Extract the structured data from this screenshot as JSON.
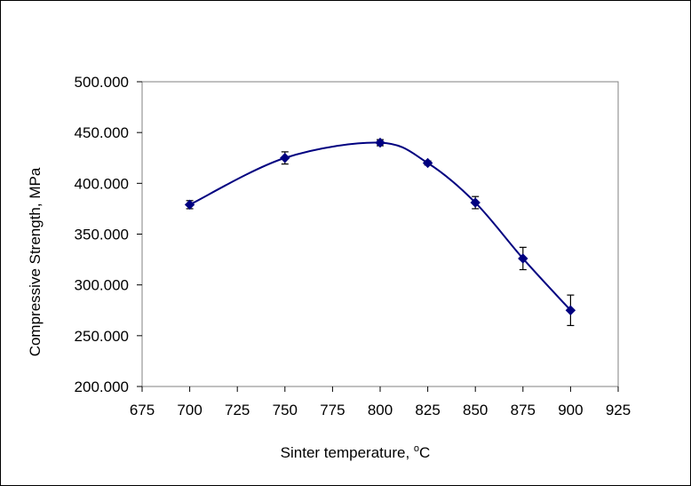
{
  "chart_data": {
    "type": "scatter",
    "xlabel": "Sinter temperature, ",
    "xlabel_unit_sup": "o",
    "xlabel_unit": "C",
    "ylabel": "Compressive Strength, MPa",
    "xlim": [
      675,
      925
    ],
    "ylim": [
      200,
      500
    ],
    "x_ticks": [
      675,
      700,
      725,
      750,
      775,
      800,
      825,
      850,
      875,
      900,
      925
    ],
    "y_ticks": [
      200,
      250,
      300,
      350,
      400,
      450,
      500
    ],
    "y_tick_labels": [
      "200.000",
      "250.000",
      "300.000",
      "350.000",
      "400.000",
      "450.000",
      "500.000"
    ],
    "grid": false,
    "smoothed_line": true,
    "marker": "diamond",
    "series_color": "#000080",
    "x": [
      700,
      750,
      800,
      825,
      850,
      875,
      900
    ],
    "y": [
      379,
      425,
      440,
      420,
      381,
      326,
      275
    ],
    "error": [
      4,
      6,
      3,
      2,
      6,
      11,
      15
    ]
  }
}
